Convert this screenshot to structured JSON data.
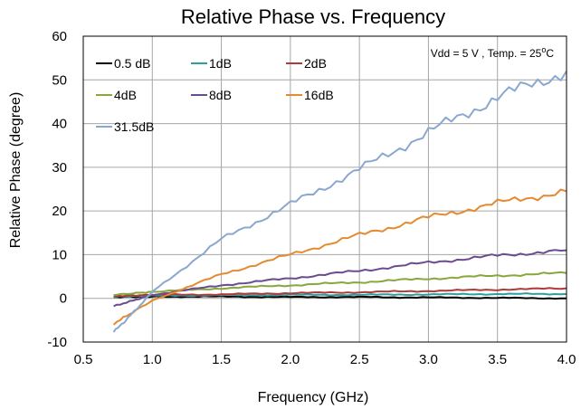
{
  "chart_data": {
    "type": "line",
    "title": "Relative Phase vs. Frequency",
    "xlabel": "Frequency (GHz)",
    "ylabel": "Relative Phase (degree)",
    "xlim": [
      0.5,
      4.0
    ],
    "ylim": [
      -10,
      60
    ],
    "x_ticks": [
      "0.5",
      "1.0",
      "1.5",
      "2.0",
      "2.5",
      "3.0",
      "3.5",
      "4.0"
    ],
    "y_ticks": [
      "-10",
      "0",
      "10",
      "20",
      "30",
      "40",
      "50",
      "60"
    ],
    "grid": true,
    "legend": "top-left",
    "annotation": {
      "main": "Vdd = 5 V , Temp. = 25",
      "sup": "o",
      "tail": "C"
    },
    "series": [
      {
        "name": "0.5 dB",
        "color": "#000000",
        "x": [
          0.72,
          1.0,
          1.5,
          2.0,
          2.5,
          3.0,
          3.5,
          4.0
        ],
        "y": [
          0.3,
          0.4,
          0.4,
          0.3,
          0.3,
          0.2,
          0.1,
          0.0
        ]
      },
      {
        "name": "1dB",
        "color": "#2e9e9e",
        "x": [
          0.72,
          1.0,
          1.5,
          2.0,
          2.5,
          3.0,
          3.5,
          4.0
        ],
        "y": [
          0.4,
          0.6,
          0.7,
          0.8,
          0.8,
          0.9,
          1.0,
          1.0
        ]
      },
      {
        "name": "2dB",
        "color": "#b03a3a",
        "x": [
          0.72,
          1.0,
          1.5,
          2.0,
          2.5,
          3.0,
          3.5,
          4.0
        ],
        "y": [
          0.5,
          0.8,
          0.9,
          1.2,
          1.4,
          1.7,
          2.0,
          2.3
        ]
      },
      {
        "name": "4dB",
        "color": "#86a83c",
        "x": [
          0.72,
          1.0,
          1.5,
          2.0,
          2.5,
          3.0,
          3.5,
          4.0
        ],
        "y": [
          0.8,
          1.5,
          2.3,
          3.0,
          3.7,
          4.5,
          5.2,
          5.8
        ]
      },
      {
        "name": "8dB",
        "color": "#6b4c8f",
        "x": [
          0.72,
          1.0,
          1.5,
          2.0,
          2.5,
          3.0,
          3.5,
          4.0
        ],
        "y": [
          -1.8,
          0.8,
          3.0,
          4.6,
          6.3,
          8.2,
          9.8,
          11.0
        ]
      },
      {
        "name": "16dB",
        "color": "#e58a30",
        "x": [
          0.72,
          1.0,
          1.5,
          2.0,
          2.5,
          3.0,
          3.5,
          4.0
        ],
        "y": [
          -5.8,
          -0.5,
          5.5,
          10.0,
          14.5,
          18.5,
          21.8,
          24.5
        ]
      },
      {
        "name": "31.5dB",
        "color": "#8aa8cf",
        "x": [
          0.72,
          0.9,
          1.0,
          1.5,
          2.0,
          2.5,
          3.0,
          3.5,
          4.0
        ],
        "y": [
          -7.8,
          -2.0,
          1.5,
          13.5,
          21.5,
          29.5,
          38.0,
          46.0,
          52.0
        ]
      }
    ]
  }
}
